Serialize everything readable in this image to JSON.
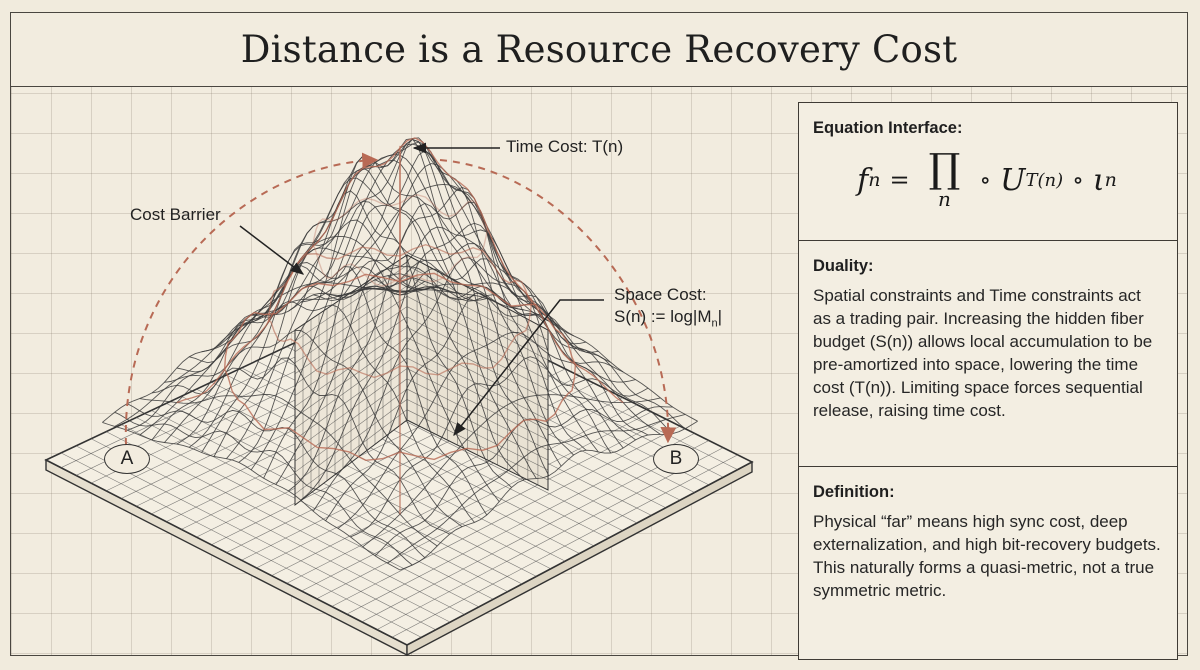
{
  "title": "Distance is a Resource Recovery Cost",
  "diagram": {
    "annotations": {
      "time_cost": "Time Cost: T(n)",
      "cost_barrier": "Cost Barrier",
      "space_cost_line1": "Space Cost:",
      "space_cost_line2": "S(n) := log|M",
      "space_cost_sub": "n",
      "space_cost_end": "|"
    },
    "points": {
      "a": "A",
      "b": "B"
    },
    "colors": {
      "mesh": "#3a3a3a",
      "accent": "#b86a55",
      "base": "#f4efe3"
    }
  },
  "panels": {
    "equation": {
      "heading": "Equation Interface:",
      "f": "f",
      "f_sub": "n",
      "eq_sign": "=",
      "prod_symbol": "∏",
      "prod_sub": "n",
      "op1": "∘",
      "u": "U",
      "u_sup": "T(n)",
      "op2": "∘",
      "iota": "ι",
      "iota_sub": "n"
    },
    "duality": {
      "heading": "Duality:",
      "text": "Spatial constraints and Time constraints act as a trading pair. Increasing the hidden fiber budget (S(n)) allows local accumulation to be pre-amortized into space, lowering the time cost (T(n)). Limiting space forces sequential release, raising time cost."
    },
    "definition": {
      "heading": "Definition:",
      "text": "Physical “far” means high sync cost, deep externalization, and high bit-recovery budgets. This naturally forms a quasi-metric, not a true symmetric metric."
    }
  }
}
